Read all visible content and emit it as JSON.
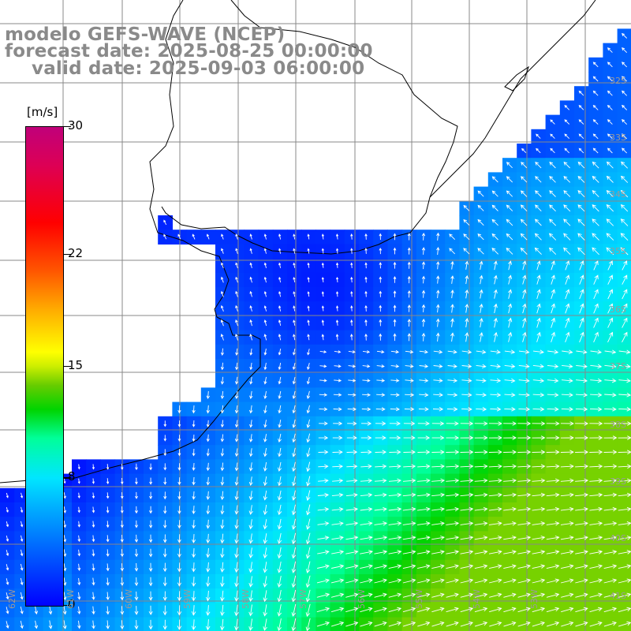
{
  "header": {
    "line1": "modelo GEFS-WAVE (NCEP)",
    "line2": "forecast date: 2025-08-25 00:00:00",
    "line3": "valid date: 2025-09-03 06:00:00"
  },
  "colorbar": {
    "unit": "[m/s]",
    "ticks": [
      "30",
      "22",
      "15",
      "8",
      "0"
    ],
    "tick_values": [
      30,
      22,
      15,
      8,
      0
    ],
    "min": 0,
    "max": 30
  },
  "latitude_labels": [
    "32S",
    "33S",
    "34S",
    "35S",
    "36S",
    "37S",
    "38S",
    "39S",
    "40S",
    "41S"
  ],
  "longitude_labels": [
    "62W",
    "61W",
    "60W",
    "59W",
    "58W",
    "57W",
    "56W",
    "55W",
    "54W",
    "53W"
  ],
  "colors": {
    "land": "#ffffff",
    "grid": "#888888",
    "coast": "#000000",
    "arrows": "#ffffff",
    "text": "#8a8a8a"
  }
}
